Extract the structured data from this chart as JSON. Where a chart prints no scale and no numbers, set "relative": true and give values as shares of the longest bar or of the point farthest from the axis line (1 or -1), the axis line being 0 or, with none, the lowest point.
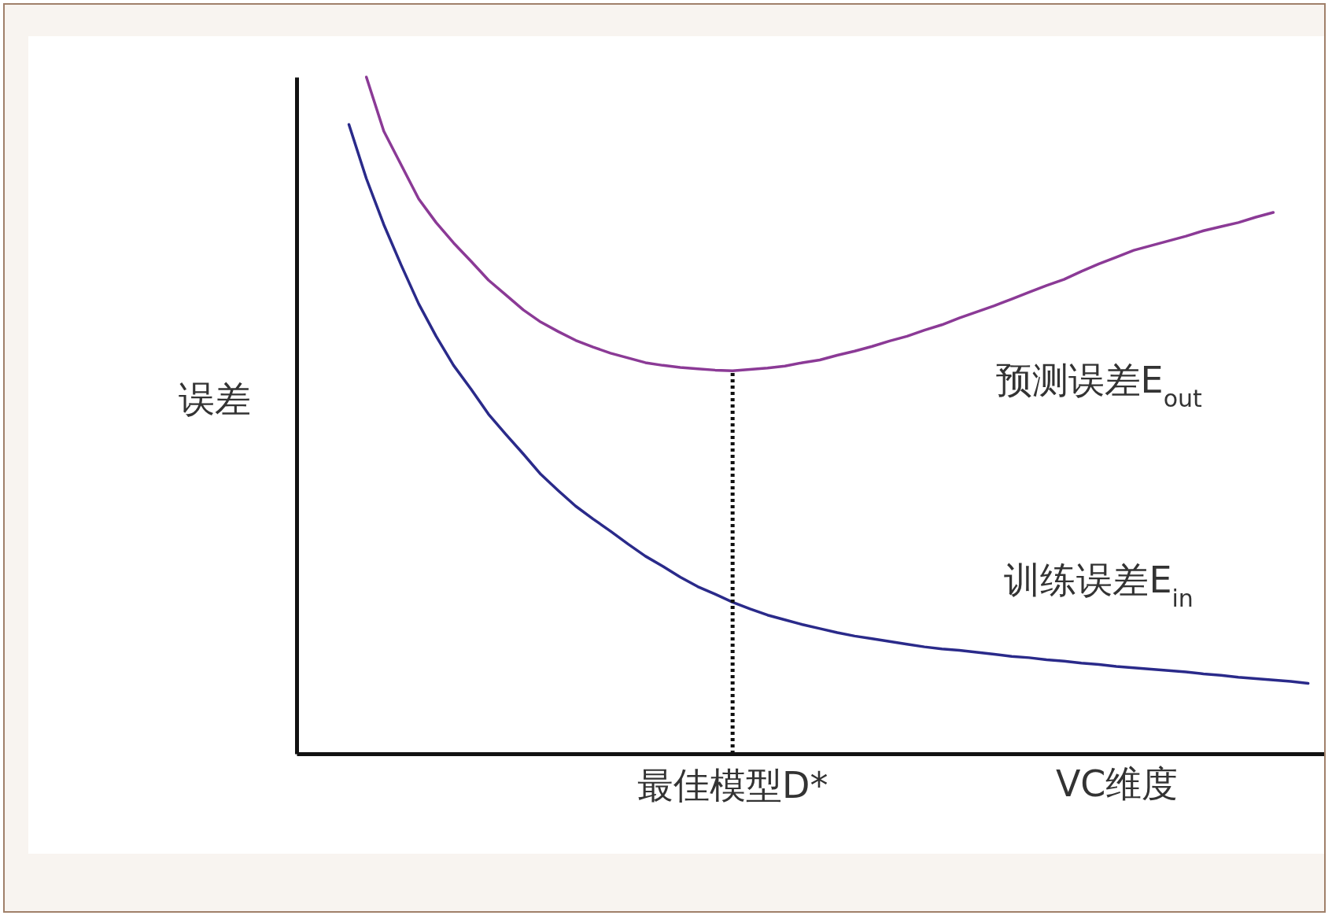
{
  "chart_data": {
    "type": "line",
    "relative": true,
    "xlabel": "VC维度",
    "ylabel": "误差",
    "categories": [
      null,
      null,
      null,
      null,
      null,
      null,
      null,
      null,
      null,
      null,
      null,
      null,
      null,
      null,
      null,
      null,
      null,
      null,
      null,
      null,
      null,
      null,
      null,
      null,
      null,
      null,
      null,
      null,
      null,
      null,
      null,
      null,
      null,
      null,
      null,
      null,
      null,
      null,
      null,
      null,
      null,
      null,
      null,
      null,
      null,
      null,
      null,
      null,
      null,
      null,
      null,
      null,
      null,
      null,
      null,
      null,
      null,
      null,
      null,
      null,
      null
    ],
    "series": [
      {
        "name": "预测误差E$_{out}$",
        "color": "#8b3a96",
        "values": [
          null,
          null,
          null,
          null,
          1.0,
          0.92,
          0.87,
          0.82,
          0.785,
          0.755,
          0.728,
          0.7,
          0.678,
          0.656,
          0.638,
          0.624,
          0.611,
          0.601,
          0.592,
          0.585,
          0.578,
          0.574,
          0.571,
          0.569,
          0.567,
          0.566,
          0.568,
          0.57,
          0.573,
          0.578,
          0.582,
          0.589,
          0.595,
          0.602,
          0.61,
          0.617,
          0.626,
          0.634,
          0.644,
          0.653,
          0.662,
          0.672,
          0.682,
          0.692,
          0.701,
          0.713,
          0.724,
          0.734,
          0.744,
          0.751,
          0.758,
          0.765,
          0.773,
          0.779,
          0.785,
          0.793,
          0.8,
          null,
          null,
          null,
          null
        ]
      },
      {
        "name": "训练误差E$_{in}$",
        "color": "#2a2a8a",
        "values": [
          null,
          null,
          null,
          0.93,
          0.85,
          0.782,
          0.722,
          0.665,
          0.617,
          0.574,
          0.539,
          0.502,
          0.472,
          0.443,
          0.413,
          0.389,
          0.366,
          0.347,
          0.329,
          0.31,
          0.292,
          0.277,
          0.261,
          0.247,
          0.236,
          0.224,
          0.214,
          0.205,
          0.198,
          0.191,
          0.185,
          0.179,
          0.174,
          0.17,
          0.166,
          0.162,
          0.158,
          0.155,
          0.153,
          0.15,
          0.147,
          0.144,
          0.142,
          0.139,
          0.137,
          0.134,
          0.132,
          0.129,
          0.127,
          0.125,
          0.123,
          0.121,
          0.118,
          0.116,
          0.113,
          0.111,
          0.109,
          0.107,
          0.104,
          null,
          null
        ]
      }
    ],
    "annotations": [
      "最佳模型D*"
    ]
  }
}
